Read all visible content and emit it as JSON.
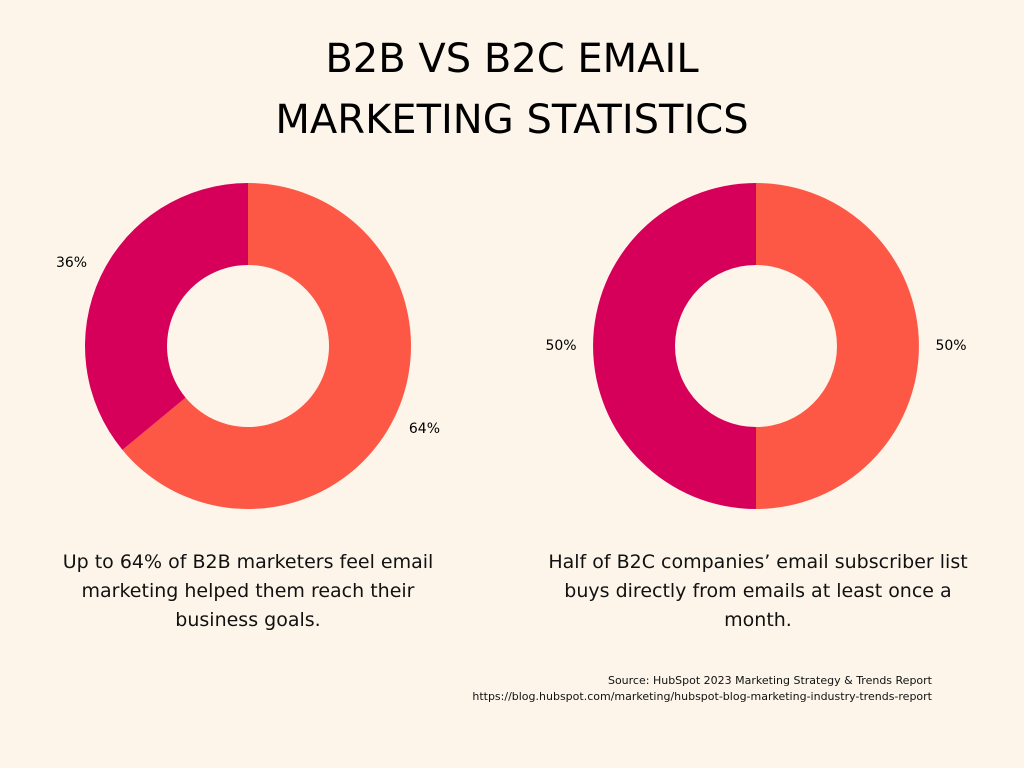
{
  "title": [
    "B2B VS B2C EMAIL",
    "MARKETING STATISTICS"
  ],
  "chart_data": [
    {
      "type": "donut",
      "values": [
        64,
        36
      ],
      "value_labels": [
        "64%",
        "36%"
      ],
      "colors": [
        "#fd5846",
        "#d6005a"
      ],
      "caption": "Up to 64% of B2B marketers feel email marketing helped them reach their business goals."
    },
    {
      "type": "donut",
      "values": [
        50,
        50
      ],
      "value_labels": [
        "50%",
        "50%"
      ],
      "colors": [
        "#fd5846",
        "#d6005a"
      ],
      "caption": "Half of B2C companies’ email subscriber list buys directly from emails at least once a month."
    }
  ],
  "source": "Source: HubSpot 2023 Marketing Strategy & Trends Report",
  "url": "https://blog.hubspot.com/marketing/hubspot-blog-marketing-industry-trends-report"
}
